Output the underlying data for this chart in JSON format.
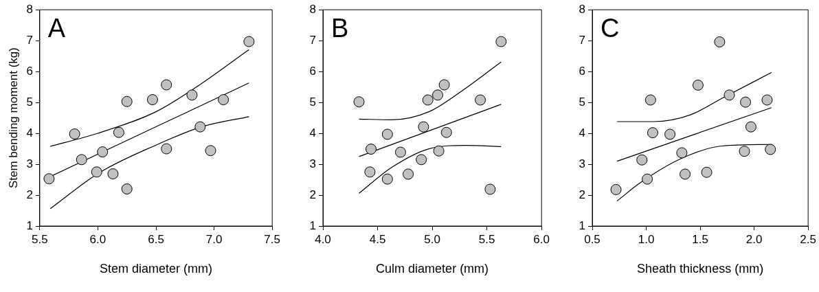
{
  "chart_data": [
    {
      "type": "scatter",
      "annotations": [
        "A"
      ],
      "xlabel": "Stem diameter (mm)",
      "ylabel": "Stem bending moment (kg)",
      "xlim": [
        5.5,
        7.5
      ],
      "xticks": [
        5.5,
        {
          "value": 6,
          "label": "6.0"
        },
        6.5,
        {
          "value": 7,
          "label": "7.0"
        },
        7.5
      ],
      "ylim": [
        1,
        8
      ],
      "yticks": [
        1,
        2,
        3,
        4,
        5,
        6,
        7,
        8
      ],
      "grid": false,
      "legend": false,
      "series": [
        {
          "type": "scatter",
          "marker": "circle",
          "color": "#c0c0c0",
          "x": [
            5.58,
            5.8,
            5.86,
            5.99,
            6.04,
            6.13,
            6.18,
            6.25,
            6.25,
            6.47,
            6.59,
            6.59,
            6.81,
            6.88,
            6.97,
            7.08,
            7.3
          ],
          "values": [
            2.53,
            3.98,
            3.15,
            2.75,
            3.4,
            2.69,
            4.03,
            5.03,
            2.2,
            5.09,
            5.57,
            3.5,
            5.24,
            4.21,
            3.44,
            5.09,
            6.97
          ]
        },
        {
          "type": "line",
          "color": "#000000",
          "x": [
            5.59,
            7.3
          ],
          "values": [
            2.6,
            5.63
          ]
        },
        {
          "type": "line",
          "color": "#000000",
          "x": [
            5.59,
            5.99,
            6.5,
            6.84,
            7.3
          ],
          "values": [
            3.58,
            3.99,
            4.7,
            5.48,
            6.71
          ]
        },
        {
          "type": "line",
          "color": "#000000",
          "x": [
            5.59,
            6.01,
            6.5,
            6.9,
            7.3
          ],
          "values": [
            1.56,
            2.72,
            3.62,
            4.22,
            4.54
          ]
        }
      ]
    },
    {
      "type": "scatter",
      "annotations": [
        "B"
      ],
      "xlabel": "Culm diameter (mm)",
      "xlim": [
        4,
        6
      ],
      "xticks": [
        {
          "value": 4,
          "label": "4.0"
        },
        4.5,
        {
          "value": 5,
          "label": "5.0"
        },
        5.5,
        {
          "value": 6,
          "label": "6.0"
        }
      ],
      "ylim": [
        1,
        8
      ],
      "yticks": [
        1,
        2,
        3,
        4,
        5,
        6,
        7,
        8
      ],
      "grid": false,
      "legend": false,
      "series": [
        {
          "type": "scatter",
          "marker": "circle",
          "color": "#c0c0c0",
          "x": [
            4.33,
            4.44,
            4.43,
            4.59,
            4.59,
            4.71,
            4.78,
            4.92,
            4.9,
            4.96,
            5.05,
            5.11,
            5.06,
            5.13,
            5.44,
            5.53,
            5.63
          ],
          "values": [
            5.02,
            3.49,
            2.75,
            3.97,
            2.52,
            3.39,
            2.68,
            4.21,
            3.15,
            5.08,
            5.24,
            5.57,
            3.43,
            4.03,
            5.08,
            2.19,
            6.97
          ]
        },
        {
          "type": "line",
          "color": "#000000",
          "x": [
            4.33,
            5.63
          ],
          "values": [
            3.25,
            4.94
          ]
        },
        {
          "type": "line",
          "color": "#000000",
          "x": [
            4.33,
            4.63,
            4.97,
            5.27,
            5.63
          ],
          "values": [
            4.46,
            4.44,
            4.7,
            5.37,
            6.31
          ]
        },
        {
          "type": "line",
          "color": "#000000",
          "x": [
            4.33,
            4.63,
            4.97,
            5.31,
            5.63
          ],
          "values": [
            2.06,
            2.9,
            3.5,
            3.61,
            3.57
          ]
        }
      ]
    },
    {
      "type": "scatter",
      "annotations": [
        "C"
      ],
      "xlabel": "Sheath thickness (mm)",
      "xlim": [
        0.5,
        2.5
      ],
      "xticks": [
        0.5,
        {
          "value": 1,
          "label": "1.0"
        },
        1.5,
        {
          "value": 2,
          "label": "2.0"
        },
        2.5
      ],
      "ylim": [
        1,
        8
      ],
      "yticks": [
        1,
        2,
        3,
        4,
        5,
        6,
        7,
        8
      ],
      "grid": false,
      "legend": false,
      "series": [
        {
          "type": "scatter",
          "marker": "circle",
          "color": "#c0c0c0",
          "x": [
            0.72,
            0.96,
            1.01,
            1.04,
            1.06,
            1.22,
            1.33,
            1.36,
            1.48,
            1.56,
            1.68,
            1.77,
            1.91,
            1.92,
            1.97,
            2.12,
            2.15
          ],
          "values": [
            2.18,
            3.14,
            2.52,
            5.08,
            4.02,
            3.97,
            3.37,
            2.68,
            5.56,
            2.74,
            6.96,
            5.24,
            3.42,
            5.01,
            4.21,
            5.08,
            3.48
          ]
        },
        {
          "type": "line",
          "color": "#000000",
          "x": [
            0.73,
            2.16
          ],
          "values": [
            3.1,
            4.83
          ]
        },
        {
          "type": "line",
          "color": "#000000",
          "x": [
            0.73,
            1.07,
            1.41,
            1.7,
            2.16
          ],
          "values": [
            4.38,
            4.38,
            4.6,
            5.13,
            5.97
          ]
        },
        {
          "type": "line",
          "color": "#000000",
          "x": [
            0.73,
            0.94,
            1.32,
            1.7,
            2.16
          ],
          "values": [
            1.81,
            2.39,
            3.18,
            3.59,
            3.64
          ]
        }
      ]
    }
  ]
}
